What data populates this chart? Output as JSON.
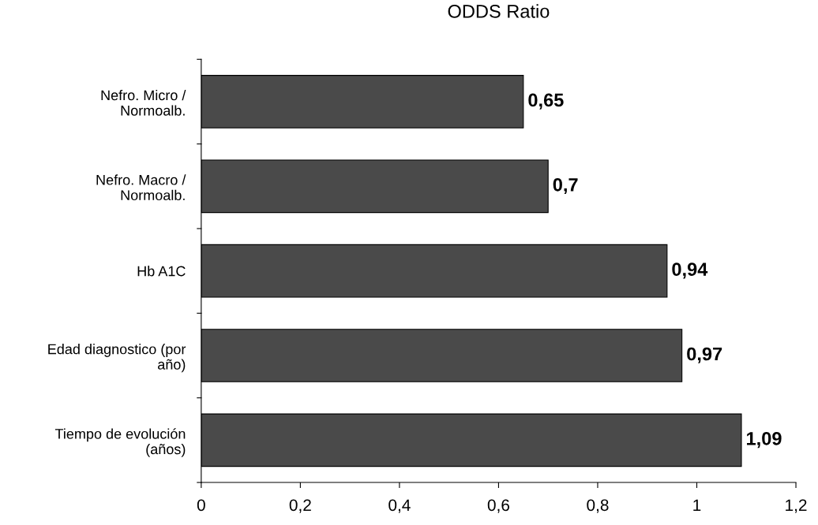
{
  "chart_data": {
    "type": "bar",
    "orientation": "horizontal",
    "title": "ODDS Ratio",
    "categories": [
      "Nefro. Micro /\nNormoalb.",
      "Nefro. Macro /\nNormoalb.",
      "Hb A1C",
      "Edad diagnostico (por\naño)",
      "Tiempo de evolución\n(años)"
    ],
    "values": [
      0.65,
      0.7,
      0.94,
      0.97,
      1.09
    ],
    "value_labels": [
      "0,65",
      "0,7",
      "0,94",
      "0,97",
      "1,09"
    ],
    "color": "#4a4a4a",
    "xlim": [
      0,
      1.2
    ],
    "xticks": [
      0,
      {
        "value": 0.2,
        "label": "0,2"
      },
      {
        "value": 0.4,
        "label": "0,4"
      },
      {
        "value": 0.6,
        "label": "0,6"
      },
      {
        "value": 0.8,
        "label": "0,8"
      },
      1,
      {
        "value": 1.2,
        "label": "1,2"
      }
    ],
    "grid": false,
    "legend": false
  }
}
